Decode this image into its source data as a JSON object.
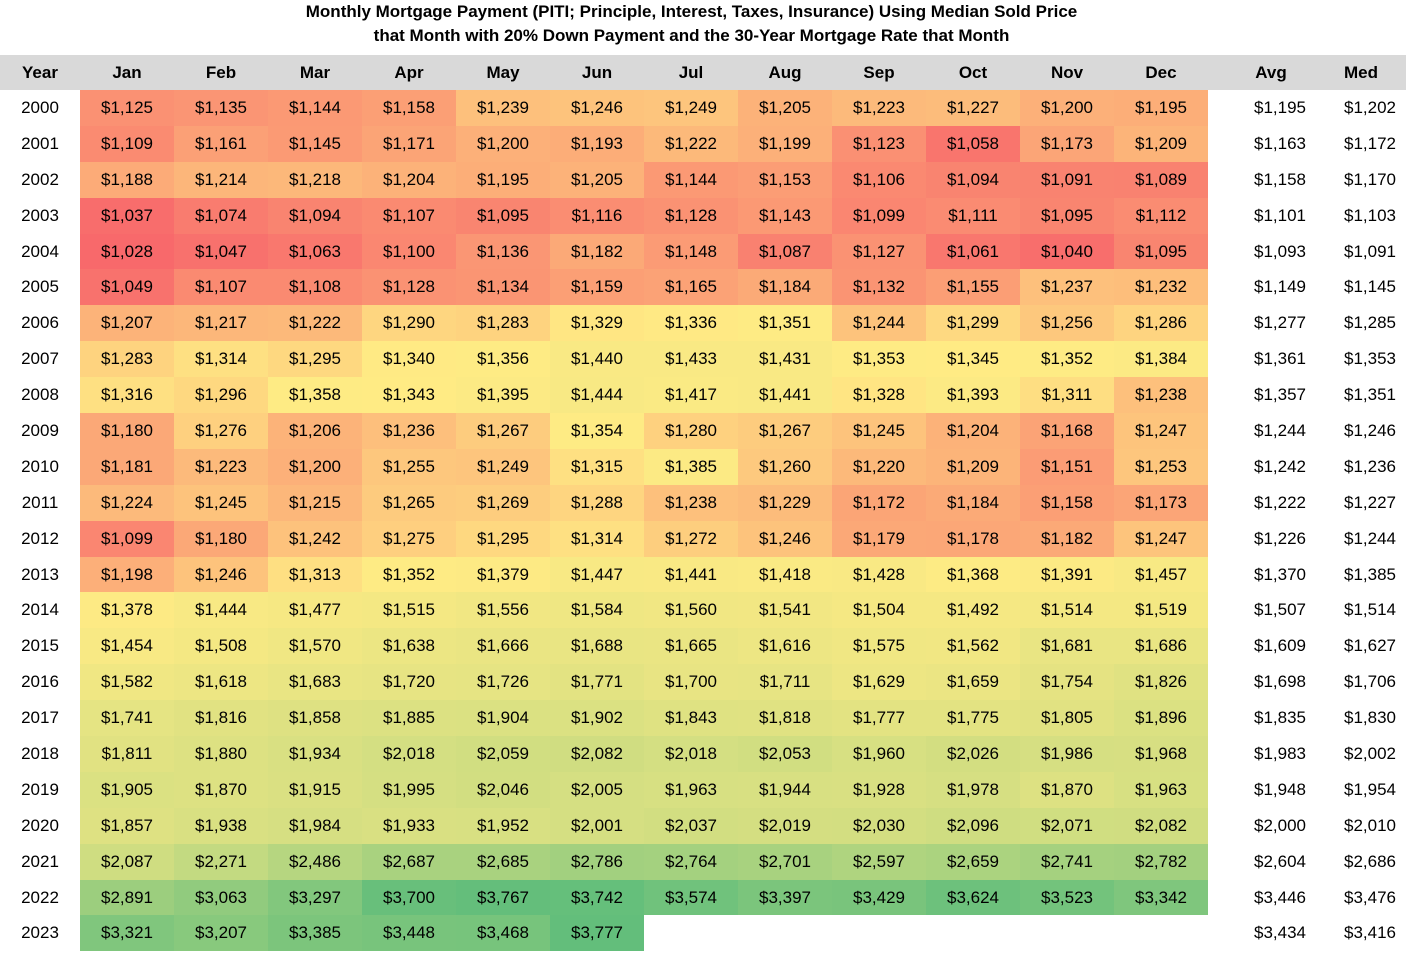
{
  "chart_data": {
    "type": "heatmap",
    "title": "Monthly Mortgage Payment (PITI; Principle, Interest, Taxes, Insurance) Using Median Sold Price that Month with 20% Down Payment and the 30-Year Mortgage Rate that Month",
    "title_lines": [
      "Monthly Mortgage Payment (PITI; Principle, Interest, Taxes, Insurance) Using Median Sold Price",
      "that Month with 20% Down Payment and the 30-Year Mortgage Rate that Month"
    ],
    "row_header": "Year",
    "columns": [
      "Jan",
      "Feb",
      "Mar",
      "Apr",
      "May",
      "Jun",
      "Jul",
      "Aug",
      "Sep",
      "Oct",
      "Nov",
      "Dec"
    ],
    "stat_columns": [
      "Avg",
      "Med"
    ],
    "color_scale": {
      "low": "#f8696b",
      "mid": "#ffeb84",
      "high": "#63be7b"
    },
    "rows": [
      {
        "year": "2000",
        "values": [
          "$1,125",
          "$1,135",
          "$1,144",
          "$1,158",
          "$1,239",
          "$1,246",
          "$1,249",
          "$1,205",
          "$1,223",
          "$1,227",
          "$1,200",
          "$1,195"
        ],
        "avg": "$1,195",
        "med": "$1,202"
      },
      {
        "year": "2001",
        "values": [
          "$1,109",
          "$1,161",
          "$1,145",
          "$1,171",
          "$1,200",
          "$1,193",
          "$1,222",
          "$1,199",
          "$1,123",
          "$1,058",
          "$1,173",
          "$1,209"
        ],
        "avg": "$1,163",
        "med": "$1,172"
      },
      {
        "year": "2002",
        "values": [
          "$1,188",
          "$1,214",
          "$1,218",
          "$1,204",
          "$1,195",
          "$1,205",
          "$1,144",
          "$1,153",
          "$1,106",
          "$1,094",
          "$1,091",
          "$1,089"
        ],
        "avg": "$1,158",
        "med": "$1,170"
      },
      {
        "year": "2003",
        "values": [
          "$1,037",
          "$1,074",
          "$1,094",
          "$1,107",
          "$1,095",
          "$1,116",
          "$1,128",
          "$1,143",
          "$1,099",
          "$1,111",
          "$1,095",
          "$1,112"
        ],
        "avg": "$1,101",
        "med": "$1,103"
      },
      {
        "year": "2004",
        "values": [
          "$1,028",
          "$1,047",
          "$1,063",
          "$1,100",
          "$1,136",
          "$1,182",
          "$1,148",
          "$1,087",
          "$1,127",
          "$1,061",
          "$1,040",
          "$1,095"
        ],
        "avg": "$1,093",
        "med": "$1,091"
      },
      {
        "year": "2005",
        "values": [
          "$1,049",
          "$1,107",
          "$1,108",
          "$1,128",
          "$1,134",
          "$1,159",
          "$1,165",
          "$1,184",
          "$1,132",
          "$1,155",
          "$1,237",
          "$1,232"
        ],
        "avg": "$1,149",
        "med": "$1,145"
      },
      {
        "year": "2006",
        "values": [
          "$1,207",
          "$1,217",
          "$1,222",
          "$1,290",
          "$1,283",
          "$1,329",
          "$1,336",
          "$1,351",
          "$1,244",
          "$1,299",
          "$1,256",
          "$1,286"
        ],
        "avg": "$1,277",
        "med": "$1,285"
      },
      {
        "year": "2007",
        "values": [
          "$1,283",
          "$1,314",
          "$1,295",
          "$1,340",
          "$1,356",
          "$1,440",
          "$1,433",
          "$1,431",
          "$1,353",
          "$1,345",
          "$1,352",
          "$1,384"
        ],
        "avg": "$1,361",
        "med": "$1,353"
      },
      {
        "year": "2008",
        "values": [
          "$1,316",
          "$1,296",
          "$1,358",
          "$1,343",
          "$1,395",
          "$1,444",
          "$1,417",
          "$1,441",
          "$1,328",
          "$1,393",
          "$1,311",
          "$1,238"
        ],
        "avg": "$1,357",
        "med": "$1,351"
      },
      {
        "year": "2009",
        "values": [
          "$1,180",
          "$1,276",
          "$1,206",
          "$1,236",
          "$1,267",
          "$1,354",
          "$1,280",
          "$1,267",
          "$1,245",
          "$1,204",
          "$1,168",
          "$1,247"
        ],
        "avg": "$1,244",
        "med": "$1,246"
      },
      {
        "year": "2010",
        "values": [
          "$1,181",
          "$1,223",
          "$1,200",
          "$1,255",
          "$1,249",
          "$1,315",
          "$1,385",
          "$1,260",
          "$1,220",
          "$1,209",
          "$1,151",
          "$1,253"
        ],
        "avg": "$1,242",
        "med": "$1,236"
      },
      {
        "year": "2011",
        "values": [
          "$1,224",
          "$1,245",
          "$1,215",
          "$1,265",
          "$1,269",
          "$1,288",
          "$1,238",
          "$1,229",
          "$1,172",
          "$1,184",
          "$1,158",
          "$1,173"
        ],
        "avg": "$1,222",
        "med": "$1,227"
      },
      {
        "year": "2012",
        "values": [
          "$1,099",
          "$1,180",
          "$1,242",
          "$1,275",
          "$1,295",
          "$1,314",
          "$1,272",
          "$1,246",
          "$1,179",
          "$1,178",
          "$1,182",
          "$1,247"
        ],
        "avg": "$1,226",
        "med": "$1,244"
      },
      {
        "year": "2013",
        "values": [
          "$1,198",
          "$1,246",
          "$1,313",
          "$1,352",
          "$1,379",
          "$1,447",
          "$1,441",
          "$1,418",
          "$1,428",
          "$1,368",
          "$1,391",
          "$1,457"
        ],
        "avg": "$1,370",
        "med": "$1,385"
      },
      {
        "year": "2014",
        "values": [
          "$1,378",
          "$1,444",
          "$1,477",
          "$1,515",
          "$1,556",
          "$1,584",
          "$1,560",
          "$1,541",
          "$1,504",
          "$1,492",
          "$1,514",
          "$1,519"
        ],
        "avg": "$1,507",
        "med": "$1,514"
      },
      {
        "year": "2015",
        "values": [
          "$1,454",
          "$1,508",
          "$1,570",
          "$1,638",
          "$1,666",
          "$1,688",
          "$1,665",
          "$1,616",
          "$1,575",
          "$1,562",
          "$1,681",
          "$1,686"
        ],
        "avg": "$1,609",
        "med": "$1,627"
      },
      {
        "year": "2016",
        "values": [
          "$1,582",
          "$1,618",
          "$1,683",
          "$1,720",
          "$1,726",
          "$1,771",
          "$1,700",
          "$1,711",
          "$1,629",
          "$1,659",
          "$1,754",
          "$1,826"
        ],
        "avg": "$1,698",
        "med": "$1,706"
      },
      {
        "year": "2017",
        "values": [
          "$1,741",
          "$1,816",
          "$1,858",
          "$1,885",
          "$1,904",
          "$1,902",
          "$1,843",
          "$1,818",
          "$1,777",
          "$1,775",
          "$1,805",
          "$1,896"
        ],
        "avg": "$1,835",
        "med": "$1,830"
      },
      {
        "year": "2018",
        "values": [
          "$1,811",
          "$1,880",
          "$1,934",
          "$2,018",
          "$2,059",
          "$2,082",
          "$2,018",
          "$2,053",
          "$1,960",
          "$2,026",
          "$1,986",
          "$1,968"
        ],
        "avg": "$1,983",
        "med": "$2,002"
      },
      {
        "year": "2019",
        "values": [
          "$1,905",
          "$1,870",
          "$1,915",
          "$1,995",
          "$2,046",
          "$2,005",
          "$1,963",
          "$1,944",
          "$1,928",
          "$1,978",
          "$1,870",
          "$1,963"
        ],
        "avg": "$1,948",
        "med": "$1,954"
      },
      {
        "year": "2020",
        "values": [
          "$1,857",
          "$1,938",
          "$1,984",
          "$1,933",
          "$1,952",
          "$2,001",
          "$2,037",
          "$2,019",
          "$2,030",
          "$2,096",
          "$2,071",
          "$2,082"
        ],
        "avg": "$2,000",
        "med": "$2,010"
      },
      {
        "year": "2021",
        "values": [
          "$2,087",
          "$2,271",
          "$2,486",
          "$2,687",
          "$2,685",
          "$2,786",
          "$2,764",
          "$2,701",
          "$2,597",
          "$2,659",
          "$2,741",
          "$2,782"
        ],
        "avg": "$2,604",
        "med": "$2,686"
      },
      {
        "year": "2022",
        "values": [
          "$2,891",
          "$3,063",
          "$3,297",
          "$3,700",
          "$3,767",
          "$3,742",
          "$3,574",
          "$3,397",
          "$3,429",
          "$3,624",
          "$3,523",
          "$3,342"
        ],
        "avg": "$3,446",
        "med": "$3,476"
      },
      {
        "year": "2023",
        "values": [
          "$3,321",
          "$3,207",
          "$3,385",
          "$3,448",
          "$3,468",
          "$3,777",
          "",
          "",
          "",
          "",
          "",
          ""
        ],
        "avg": "$3,434",
        "med": "$3,416"
      }
    ]
  }
}
